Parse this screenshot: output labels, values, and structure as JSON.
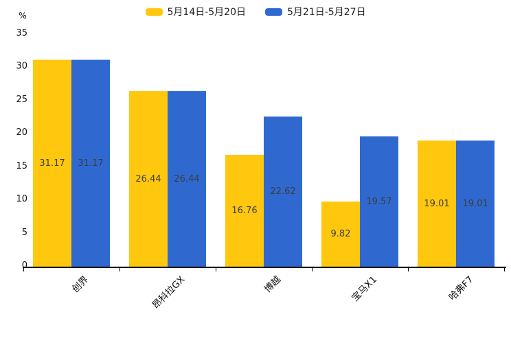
{
  "chart_data": {
    "type": "bar",
    "title": "",
    "unit_label": "%",
    "categories": [
      "创界",
      "昂科拉GX",
      "博越",
      "宝马X1",
      "哈弗F7"
    ],
    "series": [
      {
        "name": "5月14日-5月20日",
        "color": "#FFC70E",
        "values": [
          31.17,
          26.44,
          16.76,
          9.82,
          19.01
        ]
      },
      {
        "name": "5月21日-5月27日",
        "color": "#2F69D0",
        "values": [
          31.17,
          26.44,
          22.62,
          19.57,
          19.01
        ]
      }
    ],
    "value_labels": [
      [
        "31.17",
        "26.44",
        "16.76",
        "9.82",
        "19.01"
      ],
      [
        "31.17",
        "26.44",
        "22.62",
        "19.57",
        "19.01"
      ]
    ],
    "ylim": [
      0,
      35
    ],
    "y_ticks": [
      0,
      5,
      10,
      15,
      20,
      25,
      30,
      35
    ],
    "legend_position": "top-center",
    "grid": false,
    "background": "#ffffff"
  }
}
